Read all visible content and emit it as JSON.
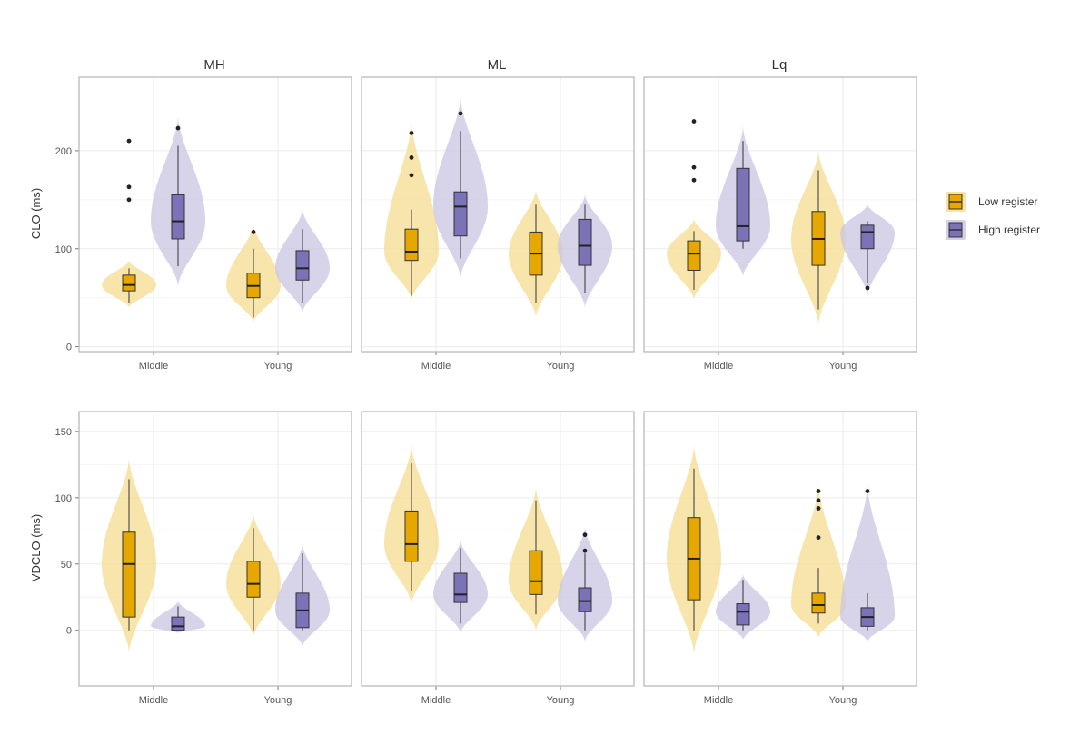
{
  "chart_data": {
    "type": "violin-box",
    "facets": [
      "MH",
      "ML",
      "Lq"
    ],
    "rows": [
      {
        "ylabel": "CLO (ms)",
        "ylim": [
          -5,
          275
        ],
        "yticks": [
          0,
          100,
          200
        ]
      },
      {
        "ylabel": "VDCLO (ms)",
        "ylim": [
          -42,
          165
        ],
        "yticks": [
          0,
          50,
          100,
          150
        ]
      }
    ],
    "x_categories": [
      "Middle",
      "Young"
    ],
    "series": [
      {
        "name": "Low register",
        "color": "#e6a800",
        "violin_color": "#f5dc8f"
      },
      {
        "name": "High register",
        "color": "#7b72b8",
        "violin_color": "#c9c5e3"
      }
    ],
    "legend_position": "right",
    "grid": true,
    "panels": [
      {
        "row": 0,
        "facet": "MH",
        "category": "Middle",
        "series": "Low register",
        "min": 45,
        "q1": 57,
        "median": 63,
        "q3": 73,
        "max": 80,
        "outliers": [
          150,
          163,
          210
        ],
        "violin": [
          40,
          88
        ]
      },
      {
        "row": 0,
        "facet": "MH",
        "category": "Middle",
        "series": "High register",
        "min": 82,
        "q1": 110,
        "median": 128,
        "q3": 155,
        "max": 205,
        "outliers": [
          223
        ],
        "violin": [
          62,
          235
        ]
      },
      {
        "row": 0,
        "facet": "MH",
        "category": "Young",
        "series": "Low register",
        "min": 30,
        "q1": 50,
        "median": 62,
        "q3": 75,
        "max": 100,
        "outliers": [
          117
        ],
        "violin": [
          25,
          125
        ]
      },
      {
        "row": 0,
        "facet": "MH",
        "category": "Young",
        "series": "High register",
        "min": 45,
        "q1": 68,
        "median": 80,
        "q3": 98,
        "max": 120,
        "outliers": [],
        "violin": [
          35,
          140
        ]
      },
      {
        "row": 0,
        "facet": "ML",
        "category": "Middle",
        "series": "Low register",
        "min": 52,
        "q1": 88,
        "median": 97,
        "q3": 120,
        "max": 140,
        "outliers": [
          175,
          193,
          218
        ],
        "violin": [
          48,
          230
        ]
      },
      {
        "row": 0,
        "facet": "ML",
        "category": "Middle",
        "series": "High register",
        "min": 90,
        "q1": 113,
        "median": 143,
        "q3": 158,
        "max": 220,
        "outliers": [
          238
        ],
        "violin": [
          70,
          255
        ]
      },
      {
        "row": 0,
        "facet": "ML",
        "category": "Young",
        "series": "Low register",
        "min": 45,
        "q1": 73,
        "median": 95,
        "q3": 117,
        "max": 145,
        "outliers": [],
        "violin": [
          30,
          160
        ]
      },
      {
        "row": 0,
        "facet": "ML",
        "category": "Young",
        "series": "High register",
        "min": 55,
        "q1": 83,
        "median": 103,
        "q3": 130,
        "max": 145,
        "outliers": [],
        "violin": [
          40,
          155
        ]
      },
      {
        "row": 0,
        "facet": "Lq",
        "category": "Middle",
        "series": "Low register",
        "min": 58,
        "q1": 78,
        "median": 95,
        "q3": 108,
        "max": 118,
        "outliers": [
          170,
          183,
          230
        ],
        "violin": [
          48,
          130
        ]
      },
      {
        "row": 0,
        "facet": "Lq",
        "category": "Middle",
        "series": "High register",
        "min": 100,
        "q1": 108,
        "median": 123,
        "q3": 182,
        "max": 210,
        "outliers": [],
        "violin": [
          72,
          225
        ]
      },
      {
        "row": 0,
        "facet": "Lq",
        "category": "Young",
        "series": "Low register",
        "min": 38,
        "q1": 83,
        "median": 110,
        "q3": 138,
        "max": 180,
        "outliers": [],
        "violin": [
          22,
          200
        ]
      },
      {
        "row": 0,
        "facet": "Lq",
        "category": "Young",
        "series": "High register",
        "min": 65,
        "q1": 100,
        "median": 117,
        "q3": 124,
        "max": 128,
        "outliers": [
          60
        ],
        "violin": [
          52,
          145
        ]
      },
      {
        "row": 1,
        "facet": "MH",
        "category": "Middle",
        "series": "Low register",
        "min": 0,
        "q1": 10,
        "median": 50,
        "q3": 74,
        "max": 114,
        "outliers": [],
        "violin": [
          -17,
          130
        ]
      },
      {
        "row": 1,
        "facet": "MH",
        "category": "Middle",
        "series": "High register",
        "min": 0,
        "q1": 0,
        "median": 3,
        "q3": 10,
        "max": 18,
        "outliers": [],
        "violin": [
          -2,
          22
        ]
      },
      {
        "row": 1,
        "facet": "MH",
        "category": "Young",
        "series": "Low register",
        "min": 0,
        "q1": 25,
        "median": 35,
        "q3": 52,
        "max": 77,
        "outliers": [],
        "violin": [
          -5,
          88
        ]
      },
      {
        "row": 1,
        "facet": "MH",
        "category": "Young",
        "series": "High register",
        "min": 0,
        "q1": 2,
        "median": 15,
        "q3": 28,
        "max": 58,
        "outliers": [],
        "violin": [
          -12,
          65
        ]
      },
      {
        "row": 1,
        "facet": "ML",
        "category": "Middle",
        "series": "Low register",
        "min": 30,
        "q1": 52,
        "median": 65,
        "q3": 90,
        "max": 126,
        "outliers": [],
        "violin": [
          20,
          140
        ]
      },
      {
        "row": 1,
        "facet": "ML",
        "category": "Middle",
        "series": "High register",
        "min": 5,
        "q1": 21,
        "median": 27,
        "q3": 43,
        "max": 62,
        "outliers": [],
        "violin": [
          -2,
          68
        ]
      },
      {
        "row": 1,
        "facet": "ML",
        "category": "Young",
        "series": "Low register",
        "min": 12,
        "q1": 27,
        "median": 37,
        "q3": 60,
        "max": 98,
        "outliers": [],
        "violin": [
          0,
          108
        ]
      },
      {
        "row": 1,
        "facet": "ML",
        "category": "Young",
        "series": "High register",
        "min": 0,
        "q1": 14,
        "median": 22,
        "q3": 32,
        "max": 58,
        "outliers": [
          60,
          72
        ],
        "violin": [
          -8,
          78
        ]
      },
      {
        "row": 1,
        "facet": "Lq",
        "category": "Middle",
        "series": "Low register",
        "min": 0,
        "q1": 23,
        "median": 54,
        "q3": 85,
        "max": 122,
        "outliers": [],
        "violin": [
          -18,
          140
        ]
      },
      {
        "row": 1,
        "facet": "Lq",
        "category": "Middle",
        "series": "High register",
        "min": 0,
        "q1": 4,
        "median": 14,
        "q3": 20,
        "max": 38,
        "outliers": [],
        "violin": [
          -7,
          42
        ]
      },
      {
        "row": 1,
        "facet": "Lq",
        "category": "Young",
        "series": "Low register",
        "min": 5,
        "q1": 13,
        "median": 19,
        "q3": 28,
        "max": 47,
        "outliers": [
          70,
          92,
          98,
          105
        ],
        "violin": [
          -5,
          110
        ]
      },
      {
        "row": 1,
        "facet": "Lq",
        "category": "Young",
        "series": "High register",
        "min": 0,
        "q1": 3,
        "median": 10,
        "q3": 17,
        "max": 28,
        "outliers": [
          105
        ],
        "violin": [
          -8,
          110
        ]
      }
    ]
  }
}
